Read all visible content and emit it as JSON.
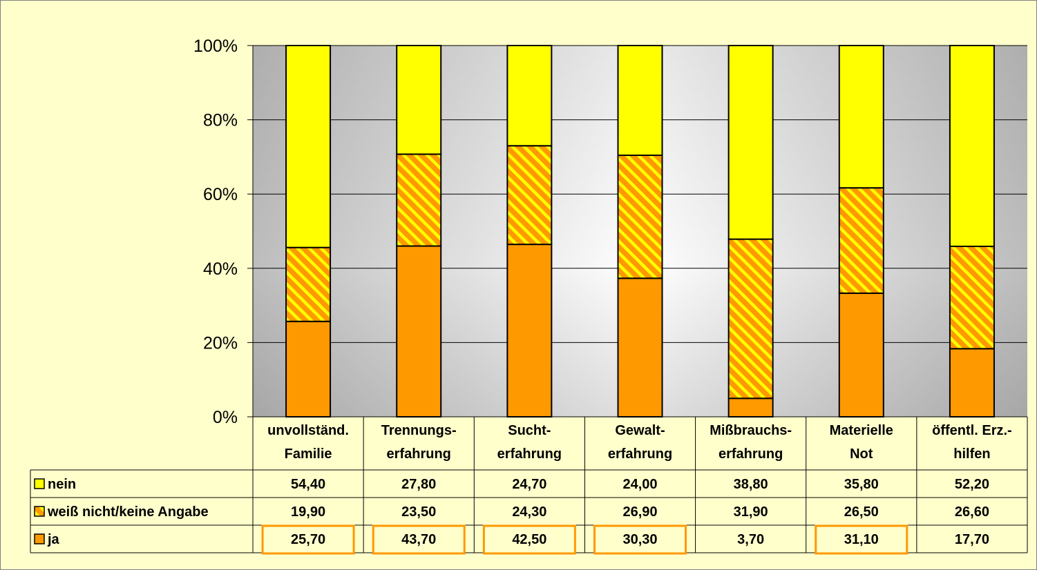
{
  "chart_data": {
    "type": "bar",
    "stacked": "percent",
    "categories": [
      [
        "unvollständ.",
        "Familie"
      ],
      [
        "Trennungs-",
        "erfahrung"
      ],
      [
        "Sucht-",
        "erfahrung"
      ],
      [
        "Gewalt-",
        "erfahrung"
      ],
      [
        "Mißbrauchs-",
        "erfahrung"
      ],
      [
        "Materielle",
        "Not"
      ],
      [
        "öffentl. Erz.-",
        "hilfen"
      ]
    ],
    "series": [
      {
        "name": "nein",
        "values": [
          54.4,
          27.8,
          24.7,
          24.0,
          38.8,
          35.8,
          52.2
        ],
        "labels": [
          "54,40",
          "27,80",
          "24,70",
          "24,00",
          "38,80",
          "35,80",
          "52,20"
        ],
        "color": "#FFFF00",
        "pattern": "solid"
      },
      {
        "name": "weiß nicht/keine Angabe",
        "values": [
          19.9,
          23.5,
          24.3,
          26.9,
          31.9,
          26.5,
          26.6
        ],
        "labels": [
          "19,90",
          "23,50",
          "24,30",
          "26,90",
          "31,90",
          "26,50",
          "26,60"
        ],
        "color": "#FF9900",
        "pattern": "hatch"
      },
      {
        "name": "ja",
        "values": [
          25.7,
          43.7,
          42.5,
          30.3,
          3.7,
          31.1,
          17.7
        ],
        "labels": [
          "25,70",
          "43,70",
          "42,50",
          "30,30",
          "3,70",
          "31,10",
          "17,70"
        ],
        "color": "#FF9900",
        "pattern": "solid"
      }
    ],
    "ylim": [
      0,
      100
    ],
    "yticks": [
      "0%",
      "20%",
      "40%",
      "60%",
      "80%",
      "100%"
    ],
    "grid": true,
    "legend": "data-table",
    "highlighted_cells": {
      "series": "ja",
      "categories": [
        0,
        1,
        2,
        3,
        5
      ]
    },
    "colors": {
      "background": "#FFFFCC",
      "highlight_border": "#FF9900"
    }
  }
}
